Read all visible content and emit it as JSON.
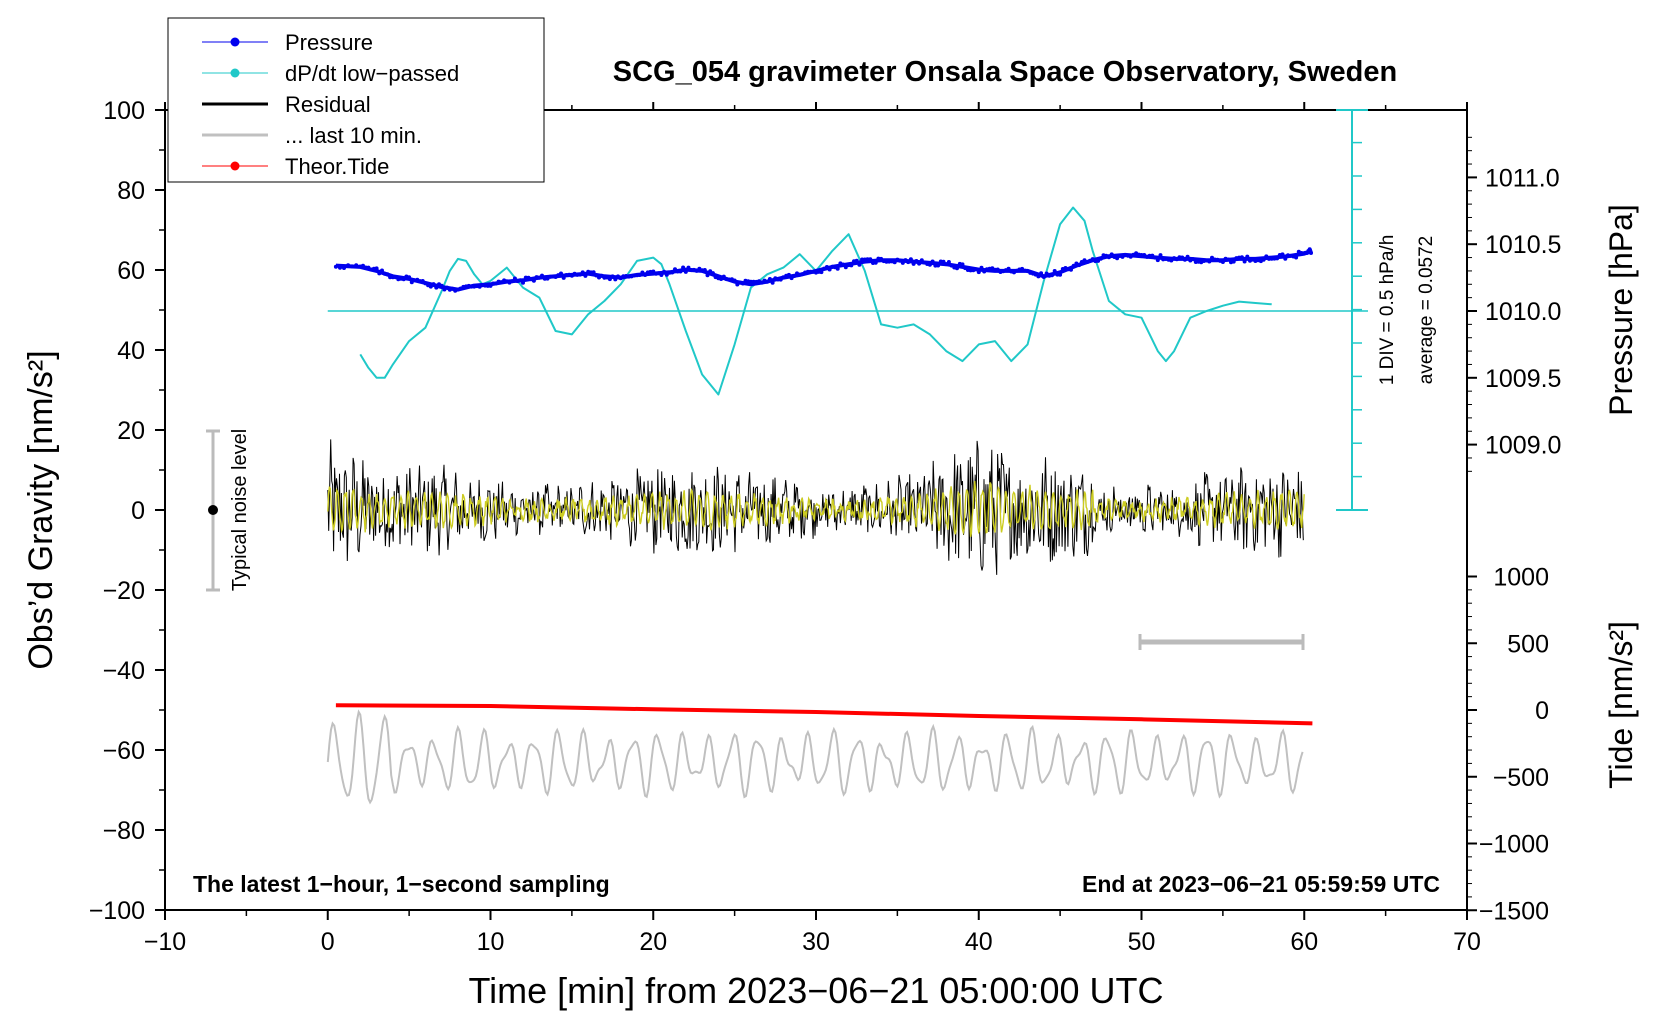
{
  "chart_data": {
    "type": "line",
    "title": "SCG_054 gravimeter Onsala Space Observatory, Sweden",
    "xlabel": "Time [min] from 2023−06−21 05:00:00 UTC",
    "ylabel_left": "Obs’d Gravity [nm/s²]",
    "ylabel_pressure": "Pressure [hPa]",
    "ylabel_tide": "Tide [nm/s²]",
    "xlim": [
      -10,
      70
    ],
    "ylim_left": [
      -100,
      100
    ],
    "x_ticks": [
      "−10",
      "0",
      "10",
      "20",
      "30",
      "40",
      "50",
      "60",
      "70"
    ],
    "y_ticks_left": [
      "100",
      "80",
      "60",
      "40",
      "20",
      "0",
      "−20",
      "−40",
      "−60",
      "−80",
      "−100"
    ],
    "pressure_ticks": [
      "1011.0",
      "1010.5",
      "1010.0",
      "1009.5",
      "1009.0"
    ],
    "tide_ticks": [
      "1000",
      "500",
      "0",
      "−500",
      "−1000",
      "−1500"
    ],
    "annotation_left": "The latest 1−hour, 1−second sampling",
    "annotation_right": "End at 2023−06−21 05:59:59 UTC",
    "noise_label": "Typical noise level",
    "dpdt_div_label": "1 DIV = 0.5 hPa/h",
    "dpdt_avg_label": "average = 0.0572",
    "legend": [
      {
        "label": "Pressure",
        "color": "#0000ee",
        "marker": true
      },
      {
        "label": "dP/dt low−passed",
        "color": "#20c8c8",
        "marker": true
      },
      {
        "label": "Residual",
        "color": "#000000",
        "marker": false
      },
      {
        "label": "... last 10 min.",
        "color": "#c0c0c0",
        "marker": false
      },
      {
        "label": "Theor.Tide",
        "color": "#ff0000",
        "marker": true
      }
    ],
    "series": [
      {
        "name": "Pressure",
        "axis": "pressure",
        "color": "#0000ee",
        "x": [
          0.5,
          2,
          3,
          4,
          5,
          6,
          7,
          8,
          9,
          10,
          11,
          12,
          13,
          14,
          15,
          16,
          17,
          18,
          19,
          20,
          21,
          22,
          23,
          24,
          25,
          26,
          27,
          28,
          29,
          30,
          31,
          32,
          33,
          34,
          35,
          36,
          37,
          38,
          39,
          40,
          41,
          42,
          43,
          44,
          45,
          46,
          47,
          48,
          49,
          50,
          51,
          52,
          53,
          54,
          55,
          56,
          57,
          58,
          59,
          60,
          60.5
        ],
        "y": [
          1010.34,
          1010.33,
          1010.3,
          1010.26,
          1010.24,
          1010.21,
          1010.18,
          1010.16,
          1010.19,
          1010.2,
          1010.22,
          1010.23,
          1010.25,
          1010.26,
          1010.27,
          1010.28,
          1010.26,
          1010.25,
          1010.27,
          1010.28,
          1010.29,
          1010.31,
          1010.3,
          1010.26,
          1010.22,
          1010.2,
          1010.22,
          1010.25,
          1010.27,
          1010.3,
          1010.33,
          1010.35,
          1010.37,
          1010.38,
          1010.38,
          1010.37,
          1010.36,
          1010.35,
          1010.33,
          1010.31,
          1010.3,
          1010.3,
          1010.3,
          1010.26,
          1010.29,
          1010.34,
          1010.38,
          1010.41,
          1010.42,
          1010.41,
          1010.4,
          1010.39,
          1010.39,
          1010.38,
          1010.38,
          1010.39,
          1010.39,
          1010.4,
          1010.41,
          1010.43,
          1010.45
        ]
      },
      {
        "name": "dP/dt low−passed",
        "axis": "dpdt",
        "color": "#20c8c8",
        "x": [
          2,
          2.5,
          3,
          3.5,
          4,
          5,
          6,
          7,
          7.5,
          8,
          8.5,
          9,
          9.5,
          10,
          11,
          12,
          13,
          14,
          15,
          16,
          17,
          18,
          19,
          20,
          20.5,
          21,
          22,
          23,
          24,
          25,
          26,
          27,
          28,
          29,
          30,
          31,
          32,
          33,
          34,
          35,
          36,
          37,
          38,
          39,
          40,
          41,
          42,
          43,
          44,
          45,
          45.8,
          46.5,
          47,
          48,
          49,
          50,
          51,
          51.5,
          52,
          53,
          54,
          55,
          56,
          57,
          58
        ],
        "y": [
          -0.65,
          -0.85,
          -1.0,
          -1.0,
          -0.8,
          -0.45,
          -0.25,
          0.3,
          0.6,
          0.78,
          0.75,
          0.55,
          0.4,
          0.45,
          0.65,
          0.35,
          0.2,
          -0.3,
          -0.35,
          -0.05,
          0.15,
          0.4,
          0.75,
          0.8,
          0.7,
          0.4,
          -0.3,
          -0.95,
          -1.25,
          -0.5,
          0.35,
          0.55,
          0.65,
          0.85,
          0.6,
          0.9,
          1.15,
          0.6,
          -0.2,
          -0.25,
          -0.2,
          -0.35,
          -0.6,
          -0.75,
          -0.5,
          -0.45,
          -0.75,
          -0.5,
          0.45,
          1.3,
          1.55,
          1.35,
          0.9,
          0.15,
          -0.05,
          -0.1,
          -0.6,
          -0.75,
          -0.6,
          -0.1,
          0.0,
          0.08,
          0.14,
          0.12,
          0.1
        ]
      },
      {
        "name": "Theor.Tide",
        "axis": "tide",
        "color": "#ff0000",
        "x": [
          0.5,
          10,
          20,
          30,
          40,
          50,
          60.5
        ],
        "y": [
          35,
          30,
          5,
          -15,
          -45,
          -70,
          -100
        ]
      }
    ],
    "residual": {
      "range_x": [
        0,
        60
      ],
      "amplitude_nm_s2": "about ±12, peaks ±20"
    },
    "last10min_trace": {
      "range_x": [
        0,
        60
      ],
      "baseline_nm_s2": -63,
      "amplitude_nm_s2": 6
    }
  }
}
